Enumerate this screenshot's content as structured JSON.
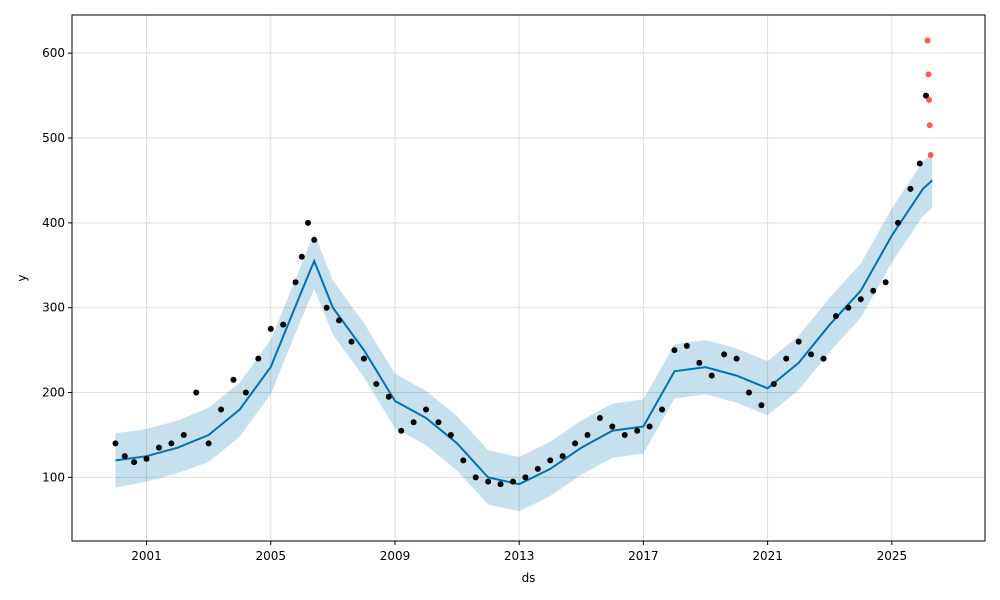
{
  "chart_data": {
    "type": "scatter",
    "title": "",
    "xlabel": "ds",
    "ylabel": "y",
    "xlim": [
      1998.6,
      2028.0
    ],
    "ylim": [
      25,
      645
    ],
    "x_ticks": [
      2001,
      2005,
      2009,
      2013,
      2017,
      2021,
      2025
    ],
    "x_tick_labels": [
      "2001",
      "2005",
      "2009",
      "2013",
      "2017",
      "2021",
      "2025"
    ],
    "y_ticks": [
      100,
      200,
      300,
      400,
      500,
      600
    ],
    "y_tick_labels": [
      "100",
      "200",
      "300",
      "400",
      "500",
      "600"
    ],
    "grid": true,
    "colors": {
      "observed": "#000000",
      "anomaly": "#ff3b3b",
      "forecast_line": "#0072B2",
      "interval_fill": "#0072B2"
    },
    "series": [
      {
        "role": "observed",
        "x": [
          2000.0,
          2000.3,
          2000.6,
          2001.0,
          2001.4,
          2001.8,
          2002.2,
          2002.6,
          2003.0,
          2003.4,
          2003.8,
          2004.2,
          2004.6,
          2005.0,
          2005.4,
          2005.8,
          2006.0,
          2006.2,
          2006.4,
          2006.8,
          2007.2,
          2007.6,
          2008.0,
          2008.4,
          2008.8,
          2009.2,
          2009.6,
          2010.0,
          2010.4,
          2010.8,
          2011.2,
          2011.6,
          2012.0,
          2012.4,
          2012.8,
          2013.2,
          2013.6,
          2014.0,
          2014.4,
          2014.8,
          2015.2,
          2015.6,
          2016.0,
          2016.4,
          2016.8,
          2017.2,
          2017.6,
          2018.0,
          2018.4,
          2018.8,
          2019.2,
          2019.6,
          2020.0,
          2020.4,
          2020.8,
          2021.2,
          2021.6,
          2022.0,
          2022.4,
          2022.8,
          2023.2,
          2023.6,
          2024.0,
          2024.4,
          2024.8,
          2025.2,
          2025.6,
          2025.9,
          2026.1
        ],
        "y": [
          140,
          125,
          118,
          122,
          135,
          140,
          150,
          200,
          140,
          180,
          215,
          200,
          240,
          275,
          280,
          330,
          360,
          400,
          380,
          300,
          285,
          260,
          240,
          210,
          195,
          155,
          165,
          180,
          165,
          150,
          120,
          100,
          95,
          92,
          95,
          100,
          110,
          120,
          125,
          140,
          150,
          170,
          160,
          150,
          155,
          160,
          180,
          250,
          255,
          235,
          220,
          245,
          240,
          200,
          185,
          210,
          240,
          260,
          245,
          240,
          290,
          300,
          310,
          320,
          330,
          400,
          440,
          470,
          550
        ]
      },
      {
        "role": "anomaly",
        "x": [
          2026.15,
          2026.18,
          2026.2,
          2026.22,
          2026.25
        ],
        "y": [
          615,
          575,
          545,
          515,
          480
        ]
      },
      {
        "role": "forecast",
        "x": [
          2000.0,
          2001.0,
          2002.0,
          2003.0,
          2004.0,
          2005.0,
          2006.0,
          2006.4,
          2007.0,
          2008.0,
          2009.0,
          2010.0,
          2011.0,
          2012.0,
          2013.0,
          2014.0,
          2015.0,
          2016.0,
          2017.0,
          2018.0,
          2019.0,
          2020.0,
          2021.0,
          2022.0,
          2023.0,
          2024.0,
          2025.0,
          2026.0,
          2026.3
        ],
        "y": [
          120,
          125,
          135,
          150,
          180,
          230,
          320,
          355,
          300,
          250,
          190,
          170,
          140,
          100,
          92,
          110,
          135,
          155,
          160,
          225,
          230,
          220,
          205,
          235,
          280,
          320,
          385,
          440,
          450
        ],
        "lower": [
          88,
          95,
          105,
          118,
          148,
          198,
          288,
          322,
          268,
          218,
          158,
          138,
          108,
          68,
          60,
          78,
          103,
          123,
          128,
          193,
          198,
          188,
          173,
          203,
          248,
          288,
          353,
          408,
          418
        ],
        "upper": [
          152,
          157,
          167,
          182,
          212,
          262,
          352,
          388,
          332,
          282,
          222,
          202,
          172,
          132,
          124,
          142,
          167,
          187,
          192,
          257,
          262,
          252,
          237,
          267,
          312,
          352,
          417,
          472,
          482
        ]
      }
    ]
  }
}
